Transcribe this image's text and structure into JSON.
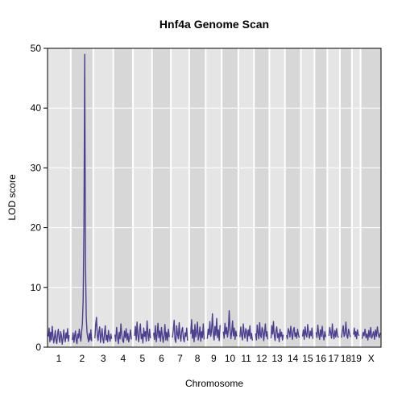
{
  "chart_data": {
    "type": "line",
    "title": "Hnf4a Genome Scan",
    "xlabel": "Chromosome",
    "ylabel": "LOD score",
    "ylim": [
      0,
      50
    ],
    "yticks": [
      0,
      10,
      20,
      30,
      40,
      50
    ],
    "grid": true,
    "legend": "none",
    "colors": {
      "line": "#4b3f8f",
      "band_light": "#e5e5e5",
      "band_dark": "#d7d7d7",
      "grid": "#ffffff",
      "axis": "#000000"
    },
    "chromosomes": [
      {
        "label": "1",
        "length": 195
      },
      {
        "label": "2",
        "length": 182
      },
      {
        "label": "3",
        "length": 160
      },
      {
        "label": "4",
        "length": 157
      },
      {
        "label": "5",
        "length": 152
      },
      {
        "label": "6",
        "length": 150
      },
      {
        "label": "7",
        "length": 145
      },
      {
        "label": "8",
        "length": 130
      },
      {
        "label": "9",
        "length": 125
      },
      {
        "label": "10",
        "length": 131
      },
      {
        "label": "11",
        "length": 122
      },
      {
        "label": "12",
        "length": 120
      },
      {
        "label": "13",
        "length": 121
      },
      {
        "label": "14",
        "length": 125
      },
      {
        "label": "15",
        "length": 104
      },
      {
        "label": "16",
        "length": 98
      },
      {
        "label": "17",
        "length": 95
      },
      {
        "label": "18",
        "length": 91
      },
      {
        "label": "19",
        "length": 61
      },
      {
        "label": "X",
        "length": 171
      }
    ],
    "series": [
      {
        "values": [
          [
            1.8,
            3.2,
            0.9,
            2.5,
            1.2,
            3.5,
            2.0,
            0.7,
            1.6,
            2.8,
            1.1,
            0.6,
            2.2,
            3.0,
            1.4,
            0.8,
            2.6,
            1.9,
            0.5,
            1.3,
            2.9,
            1.7,
            0.9,
            2.4,
            1.5,
            3.1,
            1.0,
            2.0
          ],
          [
            1.2,
            2.4,
            0.8,
            1.9,
            2.7,
            1.1,
            0.6,
            2.2,
            1.5,
            3.0,
            1.8,
            1.0,
            2.5,
            4.0,
            8.0,
            20.0,
            49.0,
            14.0,
            5.0,
            2.5,
            1.6,
            0.9,
            2.3,
            1.2,
            2.9,
            1.0
          ],
          [
            1.5,
            3.8,
            5.0,
            2.0,
            1.1,
            2.6,
            3.4,
            0.8,
            1.9,
            3.1,
            1.3,
            0.7,
            2.4,
            3.6,
            1.2,
            2.0,
            0.9,
            2.8,
            1.6,
            1.0,
            2.2,
            1.4
          ],
          [
            2.1,
            1.0,
            3.3,
            1.8,
            0.6,
            2.5,
            1.4,
            3.9,
            2.0,
            1.1,
            0.8,
            2.7,
            1.6,
            3.1,
            1.2,
            2.3,
            0.9,
            1.7,
            2.9,
            1.3
          ],
          [
            1.9,
            3.5,
            1.2,
            4.2,
            2.0,
            0.9,
            2.8,
            3.9,
            1.4,
            2.2,
            0.7,
            3.2,
            1.8,
            2.6,
            1.0,
            4.4,
            2.3,
            1.1,
            3.0,
            1.5
          ],
          [
            2.4,
            1.3,
            3.6,
            0.9,
            2.1,
            4.0,
            1.6,
            2.7,
            1.0,
            3.3,
            2.0,
            0.8,
            1.9,
            3.8,
            1.2,
            2.5,
            1.1,
            3.0,
            1.7
          ],
          [
            1.6,
            2.9,
            4.5,
            1.3,
            0.8,
            3.6,
            2.2,
            1.4,
            4.1,
            2.0,
            1.0,
            2.7,
            3.3,
            1.5,
            0.9,
            2.4,
            1.8,
            3.2,
            1.1
          ],
          [
            2.2,
            4.6,
            1.5,
            2.9,
            0.9,
            3.8,
            1.7,
            2.5,
            4.2,
            1.2,
            2.0,
            3.4,
            1.0,
            2.6,
            1.6,
            3.9,
            1.3
          ],
          [
            1.4,
            3.0,
            2.1,
            4.3,
            1.8,
            2.7,
            5.6,
            2.3,
            1.2,
            3.5,
            2.0,
            4.8,
            1.6,
            2.9,
            1.1,
            3.7
          ],
          [
            2.6,
            1.5,
            4.0,
            2.2,
            3.3,
            1.7,
            2.8,
            6.1,
            3.0,
            1.4,
            2.5,
            4.4,
            1.9,
            3.2,
            1.3,
            2.7,
            1.8
          ],
          [
            1.7,
            3.4,
            2.0,
            1.2,
            3.9,
            2.4,
            1.5,
            3.1,
            2.6,
            1.0,
            2.9,
            1.9,
            3.6,
            1.4,
            2.3,
            1.1
          ],
          [
            2.3,
            1.2,
            3.7,
            2.5,
            1.4,
            4.1,
            2.0,
            1.6,
            3.3,
            2.8,
            1.1,
            2.4,
            3.9,
            1.8,
            2.6,
            1.3
          ],
          [
            1.5,
            3.6,
            2.2,
            4.3,
            1.9,
            1.1,
            2.7,
            3.4,
            1.6,
            2.3,
            0.9,
            3.0,
            1.8,
            2.5,
            1.2,
            2.1
          ],
          [
            2.0,
            1.4,
            3.1,
            2.6,
            1.7,
            3.5,
            2.2,
            1.3,
            2.8,
            3.3,
            1.8,
            2.4,
            1.5,
            3.0,
            2.1,
            1.6
          ],
          [
            1.8,
            2.9,
            1.3,
            3.4,
            2.1,
            1.7,
            3.8,
            2.4,
            1.5,
            2.7,
            1.9,
            3.2,
            1.4
          ],
          [
            2.5,
            1.6,
            3.7,
            2.2,
            1.3,
            2.9,
            1.8,
            3.5,
            2.0,
            1.2,
            2.6,
            1.7
          ],
          [
            1.9,
            3.3,
            2.4,
            1.5,
            3.9,
            2.1,
            1.4,
            2.8,
            1.7,
            3.1,
            2.0,
            1.6
          ],
          [
            1.6,
            2.7,
            3.6,
            1.8,
            2.3,
            4.2,
            2.0,
            1.5,
            3.0,
            2.4,
            1.7
          ],
          [
            2.1,
            3.2,
            1.8,
            2.6,
            1.4,
            2.9,
            2.2,
            1.9
          ],
          [
            1.4,
            2.5,
            1.9,
            3.0,
            1.6,
            2.2,
            1.2,
            2.8,
            1.7,
            3.3,
            1.5,
            2.0,
            2.6,
            1.3,
            2.9,
            1.8,
            3.4,
            2.1,
            1.6,
            2.4
          ]
        ]
      }
    ]
  }
}
